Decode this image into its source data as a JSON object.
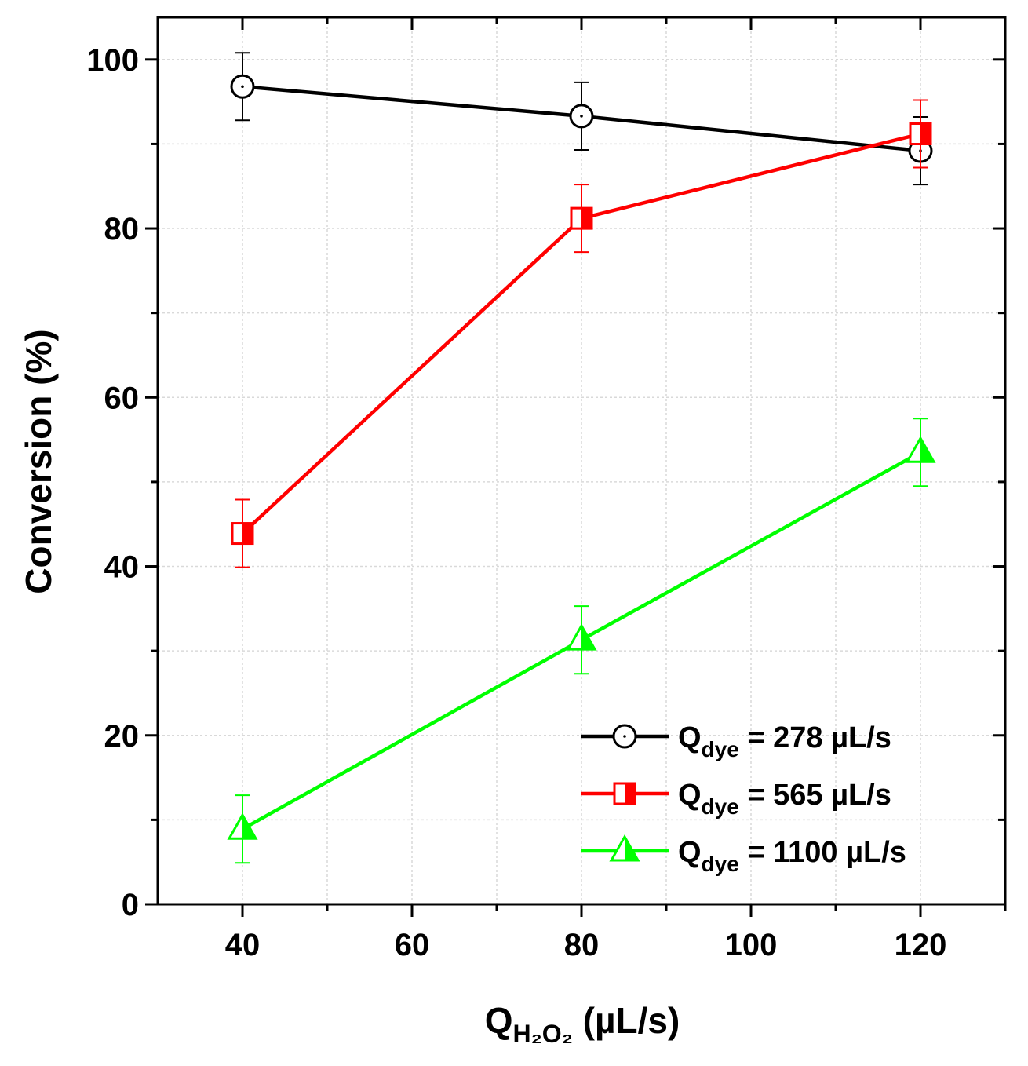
{
  "chart_data": {
    "type": "line",
    "title": "",
    "xlabel": {
      "main": "Q",
      "sub": "H₂O₂",
      "unit": " (µL/s)"
    },
    "ylabel": "Conversion (%)",
    "xlim": [
      30,
      130
    ],
    "ylim": [
      0,
      105
    ],
    "x_ticks": [
      40,
      60,
      80,
      100,
      120
    ],
    "y_ticks": [
      0,
      20,
      40,
      60,
      80,
      100
    ],
    "grid": true,
    "legend_position": "bottom-right",
    "series": [
      {
        "name": "Q_dye = 278 µL/s",
        "label_main": "Q",
        "label_sub": "dye",
        "label_rest": " = 278 µL/s",
        "color": "#000000",
        "marker": "circle",
        "x": [
          40,
          80,
          120
        ],
        "y": [
          96.8,
          93.3,
          89.2
        ],
        "err": [
          4.0,
          4.0,
          4.0
        ]
      },
      {
        "name": "Q_dye = 565 µL/s",
        "label_main": "Q",
        "label_sub": "dye",
        "label_rest": " = 565 µL/s",
        "color": "#ff0000",
        "marker": "square-half",
        "x": [
          40,
          80,
          120
        ],
        "y": [
          43.9,
          81.2,
          91.2
        ],
        "err": [
          4.0,
          4.0,
          4.0
        ]
      },
      {
        "name": "Q_dye = 1100 µL/s",
        "label_main": "Q",
        "label_sub": "dye",
        "label_rest": " = 1100 µL/s",
        "color": "#00ff00",
        "marker": "triangle-half",
        "x": [
          40,
          80,
          120
        ],
        "y": [
          8.9,
          31.3,
          53.5
        ],
        "err": [
          4.0,
          4.0,
          4.0
        ]
      }
    ]
  }
}
